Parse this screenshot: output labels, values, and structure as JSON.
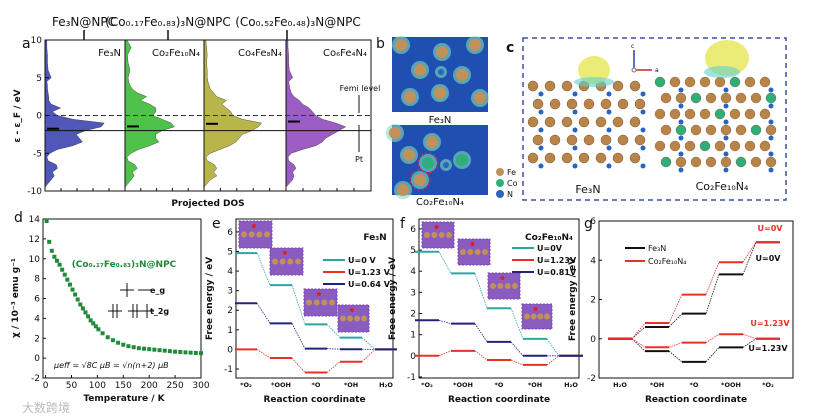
{
  "panel_letters": {
    "a": "a",
    "b": "b",
    "c": "c",
    "d": "d",
    "e": "e",
    "f": "f",
    "g": "g"
  },
  "panel_a": {
    "top_labels": [
      "Fe₃N@NPC",
      "(Co₀.₁₇Fe₀.₈₃)₃N@NPC",
      "(Co₀.₅₂Fe₀.₄₈)₃N@NPC"
    ],
    "fermi_label": "Femi level",
    "pt_label": "Pt",
    "colors": [
      "#4f58b8",
      "#4fc24a",
      "#b8b64a",
      "#9b5cc4"
    ]
  },
  "panel_b": {
    "labels": [
      "Fe₃N",
      "Co₂Fe₁₀N₄"
    ],
    "legend": [
      {
        "label": "Fe",
        "color": "#c0915a"
      },
      {
        "label": "Co",
        "color": "#2fae7a"
      },
      {
        "label": "N",
        "color": "#2a64c0"
      }
    ]
  },
  "panel_c": {
    "labels": [
      "Fe₃N",
      "Co₂Fe₁₀N₄"
    ],
    "axis_c": "c",
    "axis_a": "a"
  },
  "watermark": "大数跨境",
  "chart_data": [
    {
      "id": "a",
      "type": "area",
      "xlabel": "Projected DOS",
      "ylabel": "ε - ε_F / eV",
      "ylim": [
        -10,
        10
      ],
      "yticks": [
        "10",
        "5",
        "0",
        "-5",
        "-10"
      ],
      "fermi_level": 0,
      "pt_dband_center": -2,
      "energy": [
        -9,
        -8.5,
        -8,
        -7.5,
        -7,
        -6.5,
        -6,
        -5.5,
        -5,
        -4.5,
        -4,
        -3.5,
        -3,
        -2.5,
        -2,
        -1.5,
        -1,
        -0.5,
        0,
        0.5,
        1,
        1.5,
        2,
        2.5,
        3,
        3.5,
        4,
        4.5,
        5,
        6,
        7,
        8,
        9,
        10
      ],
      "series": [
        {
          "name": "Fe₃N",
          "dband_center": -1.75,
          "values": [
            0.05,
            0.1,
            0.15,
            0.12,
            0.2,
            0.18,
            0.05,
            0.03,
            0.08,
            0.2,
            0.45,
            0.6,
            0.55,
            0.5,
            0.65,
            0.9,
            0.95,
            0.45,
            0.2,
            0.12,
            0.25,
            0.1,
            0.06,
            0.06,
            0.05,
            0.04,
            0.04,
            0.03,
            0.1,
            0.05,
            0.04,
            0.04,
            0.03,
            0.03
          ]
        },
        {
          "name": "Co₂Fe₁₀N₄",
          "dband_center": -1.45,
          "values": [
            0.05,
            0.1,
            0.15,
            0.12,
            0.2,
            0.16,
            0.05,
            0.03,
            0.1,
            0.22,
            0.4,
            0.55,
            0.5,
            0.5,
            0.6,
            0.8,
            0.75,
            0.6,
            0.45,
            0.5,
            0.5,
            0.4,
            0.25,
            0.35,
            0.2,
            0.12,
            0.08,
            0.06,
            0.05,
            0.08,
            0.05,
            0.04,
            0.1,
            0.03
          ]
        },
        {
          "name": "Co₄Fe₈N₄",
          "dband_center": -1.1,
          "values": [
            0.05,
            0.1,
            0.2,
            0.15,
            0.2,
            0.16,
            0.05,
            0.03,
            0.1,
            0.25,
            0.4,
            0.5,
            0.55,
            0.6,
            0.75,
            0.85,
            0.9,
            0.6,
            0.45,
            0.42,
            0.35,
            0.28,
            0.35,
            0.2,
            0.15,
            0.1,
            0.08,
            0.06,
            0.05,
            0.05,
            0.04,
            0.05,
            0.04,
            0.03
          ]
        },
        {
          "name": "Co₆Fe₄N₄",
          "dband_center": -0.8,
          "values": [
            0.05,
            0.1,
            0.12,
            0.1,
            0.15,
            0.12,
            0.04,
            0.03,
            0.08,
            0.25,
            0.45,
            0.55,
            0.6,
            0.7,
            0.8,
            0.9,
            0.75,
            0.55,
            0.45,
            0.4,
            0.35,
            0.25,
            0.2,
            0.12,
            0.08,
            0.06,
            0.05,
            0.04,
            0.1,
            0.05,
            0.04,
            0.04,
            0.03,
            0.03
          ]
        }
      ]
    },
    {
      "id": "d",
      "type": "scatter",
      "title": "(Co₀.₁₇Fe₀.₈₃)₃N@NPC",
      "xlabel": "Temperature / K",
      "ylabel": "χ / 10⁻³ emu g⁻¹",
      "xlim": [
        -5,
        300
      ],
      "ylim": [
        -2,
        14
      ],
      "xticks": [
        0,
        50,
        100,
        150,
        200,
        250,
        300
      ],
      "yticks": [
        -2,
        0,
        2,
        4,
        6,
        8,
        10,
        12,
        14
      ],
      "color": "#1e8a3a",
      "x": [
        2,
        7,
        12,
        17,
        22,
        27,
        32,
        37,
        42,
        47,
        52,
        57,
        62,
        67,
        72,
        77,
        82,
        87,
        92,
        97,
        102,
        110,
        120,
        130,
        140,
        150,
        160,
        170,
        180,
        190,
        200,
        210,
        220,
        230,
        240,
        250,
        260,
        270,
        280,
        290,
        300
      ],
      "y": [
        13.8,
        11.7,
        10.8,
        10.2,
        9.8,
        9.4,
        8.9,
        8.4,
        7.9,
        7.4,
        6.9,
        6.4,
        5.9,
        5.4,
        5.0,
        4.6,
        4.2,
        3.8,
        3.5,
        3.2,
        2.9,
        2.5,
        2.1,
        1.8,
        1.55,
        1.35,
        1.2,
        1.1,
        1.0,
        0.95,
        0.9,
        0.85,
        0.8,
        0.75,
        0.7,
        0.65,
        0.62,
        0.58,
        0.55,
        0.52,
        0.5
      ],
      "annotations": {
        "eg": "e_g",
        "t2g": "t_2g",
        "formula": "μeff = √8C μB = √n(n+2) μB"
      }
    },
    {
      "id": "e",
      "type": "line",
      "title": "Fe₃N",
      "xlabel": "Reaction coordinate",
      "ylabel": "Free energy / eV",
      "ylim": [
        -1.46,
        6.66
      ],
      "yticks": [
        -1,
        0,
        1,
        2,
        3,
        4,
        5,
        6
      ],
      "categories": [
        "*O₂",
        "*OOH",
        "*O",
        "*OH",
        "H₂O"
      ],
      "series": [
        {
          "name": "U=0 V",
          "color": "#2aa8a0",
          "values": [
            4.92,
            3.28,
            1.28,
            0.6,
            0
          ]
        },
        {
          "name": "U=1.23 V",
          "color": "#e8302a",
          "values": [
            0,
            -0.44,
            -1.18,
            -0.63,
            0
          ]
        },
        {
          "name": "U=0.64 V",
          "color": "#23237e",
          "values": [
            2.36,
            1.33,
            0.04,
            0.01,
            0
          ]
        }
      ]
    },
    {
      "id": "f",
      "type": "line",
      "title": "Co₂Fe₁₀N₄",
      "xlabel": "Reaction coordinate",
      "ylabel": "Free energy / eV",
      "ylim": [
        -1.05,
        6.47
      ],
      "yticks": [
        -1,
        0,
        1,
        2,
        3,
        4,
        5,
        6
      ],
      "categories": [
        "*O₂",
        "*OOH",
        "*O",
        "*OH",
        "H₂O"
      ],
      "series": [
        {
          "name": "U=0V",
          "color": "#2aa8a0",
          "values": [
            4.92,
            3.9,
            2.25,
            0.8,
            0
          ]
        },
        {
          "name": "U=1.23V",
          "color": "#e8302a",
          "values": [
            0,
            0.23,
            -0.2,
            -0.43,
            0
          ]
        },
        {
          "name": "U=0.81V",
          "color": "#23237e",
          "values": [
            1.68,
            1.52,
            0.66,
            0,
            0
          ]
        }
      ]
    },
    {
      "id": "g",
      "type": "line",
      "xlabel": "Reaction coordinate",
      "ylabel": "Free energy / eV",
      "ylim": [
        -2,
        6
      ],
      "yticks": [
        -2,
        0,
        2,
        4,
        6
      ],
      "categories": [
        "H₂O",
        "*OH",
        "*O",
        "*OOH",
        "*O₂"
      ],
      "legend": [
        "Fe₃N",
        "Co₂Fe₁₀N₄"
      ],
      "annotations": [
        {
          "text": "U=0V",
          "color": "#e8302a"
        },
        {
          "text": "U=0V",
          "color": "#111111"
        },
        {
          "text": "U=1.23V",
          "color": "#e8302a"
        },
        {
          "text": "U=1.23V",
          "color": "#111111"
        }
      ],
      "series": [
        {
          "name": "Fe₃N U=0V",
          "color": "#111111",
          "values": [
            0,
            0.6,
            1.28,
            3.28,
            4.92
          ]
        },
        {
          "name": "Co₂Fe₁₀N₄ U=0V",
          "color": "#e8302a",
          "values": [
            0,
            0.8,
            2.25,
            3.9,
            4.92
          ]
        },
        {
          "name": "Fe₃N U=1.23V",
          "color": "#111111",
          "values": [
            0,
            -0.63,
            -1.18,
            -0.44,
            0
          ]
        },
        {
          "name": "Co₂Fe₁₀N₄ U=1.23V",
          "color": "#e8302a",
          "values": [
            0,
            -0.43,
            -0.2,
            0.23,
            0
          ]
        }
      ]
    }
  ]
}
